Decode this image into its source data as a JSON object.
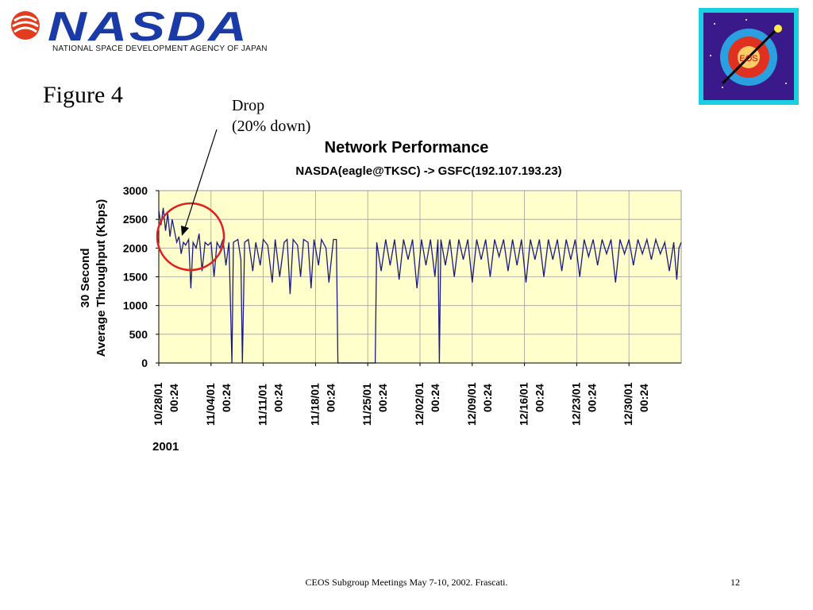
{
  "header": {
    "logo_text": "NASDA",
    "agency_name": "NATIONAL SPACE DEVELOPMENT AGENCY OF JAPAN",
    "eos_badge_text": "EOS"
  },
  "figure_title": "Figure 4",
  "annotation": {
    "line1": "Drop",
    "line2": "(20% down)"
  },
  "footer": {
    "text": "CEOS Subgroup Meetings  May 7-10, 2002.  Frascati.",
    "page_number": "12"
  },
  "colors": {
    "plot_background": "#ffffcc",
    "series_line": "#1a1a80",
    "highlight_circle": "#e02020",
    "logo_blue": "#1a3aa8"
  },
  "chart_data": {
    "type": "line",
    "title": "Network Performance",
    "subtitle": "NASDA(eagle@TKSC) -> GSFC(192.107.193.23)",
    "ylabel_line1": "30 Second",
    "ylabel_line2": "Average Throughput (Kbps)",
    "xlabel": "2001",
    "ylim": [
      0,
      3000
    ],
    "yticks": [
      0,
      500,
      1000,
      1500,
      2000,
      2500,
      3000
    ],
    "xlim_days": [
      0,
      70
    ],
    "xticks": [
      {
        "date": "10/28/01",
        "time": "00:24"
      },
      {
        "date": "11/04/01",
        "time": "00:24"
      },
      {
        "date": "11/11/01",
        "time": "00:24"
      },
      {
        "date": "11/18/01",
        "time": "00:24"
      },
      {
        "date": "11/25/01",
        "time": "00:24"
      },
      {
        "date": "12/02/01",
        "time": "00:24"
      },
      {
        "date": "12/09/01",
        "time": "00:24"
      },
      {
        "date": "12/16/01",
        "time": "00:24"
      },
      {
        "date": "12/23/01",
        "time": "00:24"
      },
      {
        "date": "12/30/01",
        "time": "00:24"
      }
    ],
    "grid": true,
    "series": [
      {
        "values": [
          [
            0.0,
            2650
          ],
          [
            0.3,
            2400
          ],
          [
            0.6,
            2700
          ],
          [
            0.9,
            2300
          ],
          [
            1.2,
            2600
          ],
          [
            1.5,
            2200
          ],
          [
            1.8,
            2500
          ],
          [
            2.1,
            2300
          ],
          [
            2.4,
            2100
          ],
          [
            2.7,
            2200
          ],
          [
            3.0,
            1900
          ],
          [
            3.3,
            2100
          ],
          [
            3.6,
            2050
          ],
          [
            4.0,
            2150
          ],
          [
            4.3,
            1300
          ],
          [
            4.6,
            2100
          ],
          [
            5.0,
            2000
          ],
          [
            5.4,
            2250
          ],
          [
            5.8,
            1600
          ],
          [
            6.2,
            2100
          ],
          [
            6.6,
            2050
          ],
          [
            7.0,
            2100
          ],
          [
            7.4,
            1500
          ],
          [
            7.8,
            2100
          ],
          [
            8.2,
            2000
          ],
          [
            8.6,
            2150
          ],
          [
            9.0,
            1700
          ],
          [
            9.4,
            2100
          ],
          [
            9.8,
            0
          ],
          [
            10.0,
            2100
          ],
          [
            10.6,
            2150
          ],
          [
            11.0,
            1800
          ],
          [
            11.2,
            0
          ],
          [
            11.5,
            2100
          ],
          [
            12.0,
            2150
          ],
          [
            12.6,
            1600
          ],
          [
            13.0,
            2100
          ],
          [
            13.6,
            1700
          ],
          [
            14.0,
            2150
          ],
          [
            14.6,
            2050
          ],
          [
            15.2,
            1400
          ],
          [
            15.6,
            2150
          ],
          [
            16.2,
            1500
          ],
          [
            16.8,
            2100
          ],
          [
            17.2,
            2150
          ],
          [
            17.6,
            1200
          ],
          [
            18.0,
            2150
          ],
          [
            18.6,
            2050
          ],
          [
            19.0,
            1500
          ],
          [
            19.4,
            2150
          ],
          [
            20.0,
            2100
          ],
          [
            20.4,
            1300
          ],
          [
            20.8,
            2150
          ],
          [
            21.4,
            1700
          ],
          [
            21.8,
            2150
          ],
          [
            22.4,
            2000
          ],
          [
            22.8,
            1400
          ],
          [
            23.4,
            2150
          ],
          [
            23.8,
            2150
          ],
          [
            24.0,
            0
          ],
          [
            29.0,
            0
          ],
          [
            29.2,
            2100
          ],
          [
            29.8,
            1600
          ],
          [
            30.4,
            2150
          ],
          [
            31.0,
            1700
          ],
          [
            31.6,
            2150
          ],
          [
            32.2,
            1450
          ],
          [
            32.8,
            2150
          ],
          [
            33.4,
            1800
          ],
          [
            34.0,
            2150
          ],
          [
            34.6,
            1300
          ],
          [
            35.2,
            2150
          ],
          [
            35.8,
            1700
          ],
          [
            36.4,
            2150
          ],
          [
            37.0,
            1500
          ],
          [
            37.4,
            2150
          ],
          [
            37.6,
            0
          ],
          [
            37.8,
            2150
          ],
          [
            38.4,
            1700
          ],
          [
            39.0,
            2150
          ],
          [
            39.6,
            1500
          ],
          [
            40.2,
            2150
          ],
          [
            40.8,
            1800
          ],
          [
            41.4,
            2150
          ],
          [
            42.0,
            1400
          ],
          [
            42.6,
            2150
          ],
          [
            43.2,
            1800
          ],
          [
            43.8,
            2150
          ],
          [
            44.4,
            1500
          ],
          [
            45.0,
            2150
          ],
          [
            45.6,
            1850
          ],
          [
            46.2,
            2150
          ],
          [
            46.8,
            1600
          ],
          [
            47.4,
            2150
          ],
          [
            48.0,
            1700
          ],
          [
            48.6,
            2150
          ],
          [
            49.2,
            1400
          ],
          [
            49.8,
            2150
          ],
          [
            50.4,
            1800
          ],
          [
            51.0,
            2150
          ],
          [
            51.6,
            1500
          ],
          [
            52.2,
            2150
          ],
          [
            52.8,
            1800
          ],
          [
            53.4,
            2150
          ],
          [
            54.0,
            1600
          ],
          [
            54.6,
            2150
          ],
          [
            55.2,
            1800
          ],
          [
            55.8,
            2150
          ],
          [
            56.4,
            1500
          ],
          [
            57.0,
            2150
          ],
          [
            57.6,
            1850
          ],
          [
            58.2,
            2150
          ],
          [
            58.8,
            1700
          ],
          [
            59.4,
            2150
          ],
          [
            60.0,
            1900
          ],
          [
            60.6,
            2150
          ],
          [
            61.2,
            1400
          ],
          [
            61.8,
            2150
          ],
          [
            62.4,
            1900
          ],
          [
            63.0,
            2150
          ],
          [
            63.6,
            1700
          ],
          [
            64.2,
            2150
          ],
          [
            64.8,
            1900
          ],
          [
            65.4,
            2150
          ],
          [
            66.0,
            1800
          ],
          [
            66.6,
            2150
          ],
          [
            67.2,
            1900
          ],
          [
            67.8,
            2100
          ],
          [
            68.4,
            1600
          ],
          [
            69.0,
            2100
          ],
          [
            69.4,
            1450
          ],
          [
            69.7,
            2000
          ],
          [
            70.0,
            2100
          ]
        ]
      }
    ]
  }
}
